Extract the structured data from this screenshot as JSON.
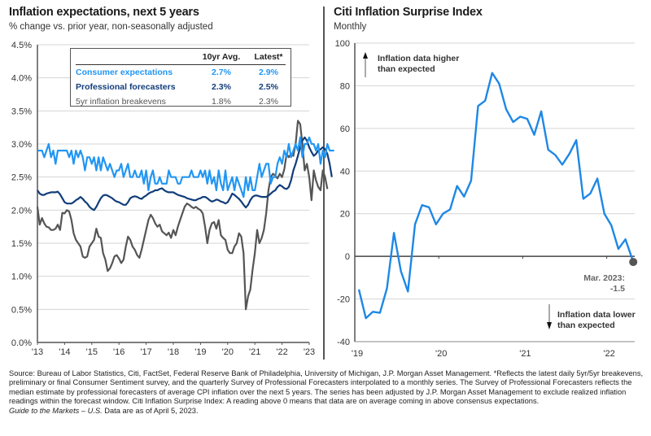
{
  "left": {
    "title": "Inflation expectations, next 5 years",
    "subtitle": "% change vs. prior year, non-seasonally adjusted",
    "legend": {
      "headers": [
        "10yr Avg.",
        "Latest*"
      ],
      "rows": [
        {
          "label": "Consumer expectations",
          "avg": "2.7%",
          "latest": "2.9%",
          "color": "#2196F3"
        },
        {
          "label": "Professional forecasters",
          "avg": "2.3%",
          "latest": "2.5%",
          "color": "#123D7A"
        },
        {
          "label": "5yr inflation breakevens",
          "avg": "1.8%",
          "latest": "2.3%",
          "color": "#555555"
        }
      ]
    }
  },
  "right": {
    "title": "Citi Inflation Surprise Index",
    "subtitle": "Monthly",
    "annotation_up": [
      "Inflation data higher",
      "than expected"
    ],
    "annotation_down": [
      "Inflation data lower",
      "than expected"
    ],
    "callout": [
      "Mar. 2023:",
      "-1.5"
    ]
  },
  "footer": {
    "source": "Source: Bureau of Labor Statistics, Citi, FactSet, Federal Reserve Bank of Philadelphia, University of Michigan, J.P. Morgan Asset Management. *Reflects the latest daily 5yr/5yr breakevens, preliminary or final Consumer Sentiment survey, and the quarterly Survey of Professional Forecasters interpolated to a monthly series. The Survey of Professional Forecasters reflects the median estimate by professional forecasters of average CPI inflation over the next 5 years. The series has been adjusted by J.P. Morgan Asset Management to exclude realized inflation readings within the forecast window. Citi Inflation Surprise Index: A reading above 0 means that data are on average coming in above consensus expectations.",
    "guide": "Guide to the Markets – U.S.",
    "asof": " Data are as of April 5, 2023."
  },
  "chart_data": [
    {
      "type": "line",
      "title": "Inflation expectations, next 5 years",
      "subtitle": "% change vs. prior year, non-seasonally adjusted",
      "xlabel": "",
      "ylabel": "",
      "x_start": "2013-01",
      "frequency": "monthly",
      "xlim": [
        2013,
        2023.25
      ],
      "ylim": [
        0,
        4.5
      ],
      "yticks": [
        0,
        0.5,
        1.0,
        1.5,
        2.0,
        2.5,
        3.0,
        3.5,
        4.0,
        4.5
      ],
      "ytick_labels": [
        "0.0%",
        "0.5%",
        "1.0%",
        "1.5%",
        "2.0%",
        "2.5%",
        "3.0%",
        "3.5%",
        "4.0%",
        "4.5%"
      ],
      "xticks": [
        2013,
        2014,
        2015,
        2016,
        2017,
        2018,
        2019,
        2020,
        2021,
        2022,
        2023
      ],
      "xtick_labels": [
        "'13",
        "'14",
        "'15",
        "'16",
        "'17",
        "'18",
        "'19",
        "'20",
        "'21",
        "'22",
        "'23"
      ],
      "grid": true,
      "legend": "top-center",
      "series": [
        {
          "name": "Consumer expectations",
          "color": "#2196F3",
          "values": [
            2.9,
            2.9,
            2.9,
            2.8,
            2.9,
            3.0,
            2.8,
            2.9,
            2.7,
            2.9,
            2.9,
            2.9,
            2.9,
            2.9,
            2.8,
            2.9,
            2.7,
            2.9,
            2.8,
            2.9,
            2.8,
            2.6,
            2.8,
            2.8,
            2.7,
            2.8,
            2.6,
            2.8,
            2.6,
            2.8,
            2.7,
            2.6,
            2.7,
            2.6,
            2.5,
            2.6,
            2.6,
            2.7,
            2.5,
            2.6,
            2.7,
            2.5,
            2.5,
            2.6,
            2.5,
            2.5,
            2.6,
            2.4,
            2.6,
            2.3,
            2.5,
            2.6,
            2.4,
            2.4,
            2.5,
            2.4,
            2.4,
            2.4,
            2.6,
            2.5,
            2.5,
            2.5,
            2.4,
            2.4,
            2.5,
            2.5,
            2.5,
            2.5,
            2.6,
            2.5,
            2.5,
            2.5,
            2.6,
            2.5,
            2.6,
            2.4,
            2.6,
            2.4,
            2.5,
            2.3,
            2.6,
            2.4,
            2.3,
            2.6,
            2.3,
            2.4,
            2.5,
            2.3,
            2.5,
            2.4,
            2.3,
            2.2,
            2.5,
            2.3,
            2.5,
            2.3,
            2.3,
            2.5,
            2.7,
            2.5,
            2.6,
            2.7,
            2.7,
            2.4,
            2.5,
            2.5,
            2.7,
            2.8,
            2.7,
            2.9,
            2.8,
            3.0,
            2.8,
            2.9,
            3.0,
            2.9,
            3.1,
            2.8,
            3.0,
            3.0,
            3.1,
            3.0,
            3.0,
            2.9,
            3.0,
            2.7,
            2.9,
            2.8,
            3.0,
            2.9,
            2.9,
            2.9
          ],
          "latest": 2.9
        },
        {
          "name": "Professional forecasters",
          "color": "#123D7A",
          "values": [
            2.3,
            2.25,
            2.23,
            2.23,
            2.25,
            2.26,
            2.27,
            2.27,
            2.27,
            2.28,
            2.24,
            2.18,
            2.12,
            2.1,
            2.1,
            2.1,
            2.12,
            2.15,
            2.17,
            2.2,
            2.17,
            2.13,
            2.1,
            2.05,
            2.02,
            2.0,
            2.05,
            2.12,
            2.18,
            2.22,
            2.23,
            2.22,
            2.2,
            2.18,
            2.15,
            2.13,
            2.12,
            2.1,
            2.08,
            2.08,
            2.12,
            2.18,
            2.2,
            2.21,
            2.2,
            2.18,
            2.17,
            2.2,
            2.22,
            2.25,
            2.27,
            2.28,
            2.3,
            2.3,
            2.32,
            2.33,
            2.3,
            2.28,
            2.27,
            2.27,
            2.27,
            2.25,
            2.23,
            2.22,
            2.21,
            2.2,
            2.18,
            2.17,
            2.16,
            2.15,
            2.15,
            2.17,
            2.18,
            2.2,
            2.2,
            2.18,
            2.15,
            2.13,
            2.14,
            2.16,
            2.15,
            2.13,
            2.12,
            2.1,
            2.12,
            2.18,
            2.25,
            2.23,
            2.2,
            2.17,
            2.13,
            2.08,
            2.04,
            2.08,
            2.15,
            2.2,
            2.22,
            2.22,
            2.21,
            2.2,
            2.2,
            2.2,
            2.22,
            2.25,
            2.28,
            2.3,
            2.35,
            2.38,
            2.36,
            2.33,
            2.32,
            2.35,
            2.45,
            2.6,
            2.7,
            2.82,
            2.95,
            3.05,
            3.1,
            3.05,
            2.95,
            2.88,
            2.82,
            2.85,
            2.9,
            2.92,
            2.95,
            2.92,
            2.85,
            2.7,
            2.5
          ],
          "latest": 2.5
        },
        {
          "name": "5yr inflation breakevens",
          "color": "#555555",
          "values": [
            2.05,
            1.78,
            1.88,
            1.8,
            1.75,
            1.74,
            1.7,
            1.7,
            1.72,
            1.78,
            1.7,
            1.96,
            1.95,
            2.0,
            1.98,
            1.85,
            1.65,
            1.55,
            1.5,
            1.45,
            1.3,
            1.28,
            1.3,
            1.45,
            1.5,
            1.55,
            1.72,
            1.6,
            1.58,
            1.35,
            1.25,
            1.08,
            1.12,
            1.2,
            1.3,
            1.32,
            1.27,
            1.2,
            1.25,
            1.45,
            1.6,
            1.55,
            1.45,
            1.4,
            1.32,
            1.28,
            1.4,
            1.55,
            1.7,
            1.85,
            1.93,
            1.88,
            1.8,
            1.75,
            1.78,
            1.68,
            1.65,
            1.62,
            1.66,
            1.58,
            1.7,
            1.62,
            1.75,
            1.85,
            1.95,
            2.05,
            2.1,
            2.08,
            2.05,
            2.03,
            2.05,
            2.02,
            2.0,
            1.95,
            1.75,
            1.5,
            1.7,
            1.8,
            1.82,
            1.72,
            1.85,
            1.62,
            1.58,
            1.55,
            1.4,
            1.35,
            1.35,
            1.45,
            1.5,
            1.65,
            1.6,
            1.35,
            0.5,
            0.7,
            0.8,
            1.1,
            1.35,
            1.7,
            1.5,
            1.58,
            1.7,
            1.95,
            2.3,
            2.5,
            2.55,
            2.52,
            2.48,
            2.55,
            2.5,
            2.62,
            2.85,
            2.8,
            2.85,
            2.82,
            3.0,
            3.35,
            3.3,
            3.0,
            2.6,
            2.7,
            2.5,
            2.15,
            2.6,
            2.45,
            2.35,
            2.3,
            2.6,
            2.5,
            2.32
          ],
          "latest": 2.3
        }
      ]
    },
    {
      "type": "line",
      "title": "Citi Inflation Surprise Index",
      "subtitle": "Monthly",
      "xlabel": "",
      "ylabel": "",
      "frequency": "monthly",
      "ylim": [
        -40,
        100
      ],
      "yticks": [
        -40,
        -20,
        0,
        20,
        40,
        60,
        80,
        100
      ],
      "ytick_labels": [
        "-40",
        "-20",
        "0",
        "20",
        "40",
        "60",
        "80",
        "100"
      ],
      "xtick_labels": [
        "'19",
        "'20",
        "'21",
        "'22"
      ],
      "xtick_months": [
        0,
        12,
        24,
        36
      ],
      "grid": true,
      "series": [
        {
          "name": "Citi Inflation Surprise Index",
          "color": "#1E88E5",
          "values": [
            -15.5,
            -29,
            -26,
            -26.5,
            -15,
            11,
            -7,
            -16.5,
            15,
            24,
            23,
            15,
            20,
            22,
            33,
            28,
            35.5,
            70.5,
            73,
            86,
            81,
            69,
            63,
            65.5,
            64.5,
            57,
            68,
            50,
            47.5,
            43,
            48,
            54.5,
            27,
            29.5,
            36.5,
            20,
            14.5,
            3.5,
            8,
            -1.5
          ]
        }
      ],
      "annotations": [
        {
          "text": "Inflation data higher than expected",
          "direction": "up"
        },
        {
          "text": "Inflation data lower than expected",
          "direction": "down"
        },
        {
          "text": "Mar. 2023: -1.5",
          "marker": "last-point"
        }
      ]
    }
  ]
}
